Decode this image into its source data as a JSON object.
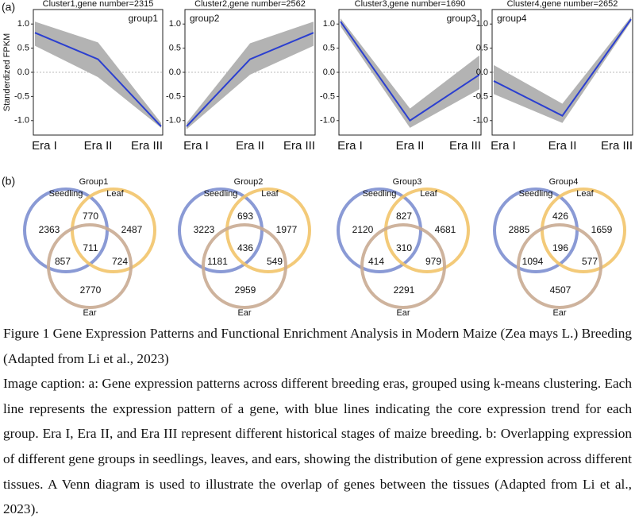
{
  "panel_labels": [
    "(a)",
    "(b)"
  ],
  "chart_data": [
    {
      "type": "line",
      "title": "Cluster1,gene number=2315",
      "annotation": "group1",
      "annotation_position": "right",
      "y_label": "Standerdized FPKM",
      "categories": [
        "Era I",
        "Era II",
        "Era III"
      ],
      "values": [
        0.82,
        0.27,
        -1.12
      ],
      "lower": [
        0.55,
        -0.1,
        -1.15
      ],
      "upper": [
        1.05,
        0.62,
        -1.05
      ],
      "color": "#2b3fd0",
      "band_color": "#b3b3b3",
      "ylim": [
        -1.3,
        1.3
      ],
      "yticks": [
        {
          "value": 1,
          "label": "1.0"
        },
        0.5,
        {
          "value": 0,
          "label": "0.0"
        },
        -0.5,
        {
          "value": -1,
          "label": "-1.0"
        }
      ],
      "zero_line": true
    },
    {
      "type": "line",
      "title": "Cluster2,gene number=2562",
      "annotation": "group2",
      "annotation_position": "left",
      "categories": [
        "Era I",
        "Era II",
        "Era III"
      ],
      "values": [
        -1.12,
        0.27,
        0.82
      ],
      "lower": [
        -1.18,
        -0.05,
        0.55
      ],
      "upper": [
        -1.05,
        0.6,
        1.05
      ],
      "color": "#2b3fd0",
      "band_color": "#b3b3b3",
      "ylim": [
        -1.3,
        1.3
      ],
      "yticks": [
        {
          "value": 1,
          "label": "1.0"
        },
        0.5,
        {
          "value": 0,
          "label": "0.0"
        },
        -0.5,
        {
          "value": -1,
          "label": "-1.0"
        }
      ],
      "zero_line": true
    },
    {
      "type": "line",
      "title": "Cluster3,gene number=1690",
      "annotation": "group3",
      "annotation_position": "right",
      "categories": [
        "Era I",
        "Era II",
        "Era III"
      ],
      "values": [
        1.05,
        -1.0,
        -0.05
      ],
      "lower": [
        0.95,
        -1.15,
        -0.35
      ],
      "upper": [
        1.12,
        -0.75,
        0.35
      ],
      "color": "#2b3fd0",
      "band_color": "#b3b3b3",
      "ylim": [
        -1.3,
        1.3
      ],
      "yticks": [
        {
          "value": 1,
          "label": "1.0"
        },
        0.5,
        {
          "value": 0,
          "label": "0.0"
        },
        -0.5,
        {
          "value": -1,
          "label": "-1.0"
        }
      ],
      "zero_line": true
    },
    {
      "type": "line",
      "title": "Cluster4,gene number=2652",
      "annotation": "group4",
      "annotation_position": "left",
      "categories": [
        "Era I",
        "Era II",
        "Era III"
      ],
      "values": [
        -0.18,
        -0.9,
        1.1
      ],
      "lower": [
        -0.45,
        -1.05,
        1.05
      ],
      "upper": [
        0.15,
        -0.65,
        1.15
      ],
      "color": "#2b3fd0",
      "band_color": "#b3b3b3",
      "ylim": [
        -1.3,
        1.3
      ],
      "yticks": [
        {
          "value": 1,
          "label": "1.0"
        },
        0.5,
        {
          "value": 0,
          "label": "0.0"
        },
        -0.5,
        {
          "value": -1,
          "label": "-1.0"
        }
      ],
      "zero_line": true
    }
  ],
  "venn": [
    {
      "title": "Group1",
      "sets": [
        "Seedling",
        "Leaf",
        "Ear"
      ],
      "regions": {
        "seedling_only": 2363,
        "seedling_leaf": 770,
        "leaf_only": 2487,
        "all": 711,
        "seedling_ear": 857,
        "leaf_ear": 724,
        "ear_only": 2770
      }
    },
    {
      "title": "Group2",
      "sets": [
        "Seedling",
        "Leaf",
        "Ear"
      ],
      "regions": {
        "seedling_only": 3223,
        "seedling_leaf": 693,
        "leaf_only": 1977,
        "all": 436,
        "seedling_ear": 1181,
        "leaf_ear": 549,
        "ear_only": 2959
      }
    },
    {
      "title": "Group3",
      "sets": [
        "Seedling",
        "Leaf",
        "Ear"
      ],
      "regions": {
        "seedling_only": 2120,
        "seedling_leaf": 827,
        "leaf_only": 4681,
        "all": 310,
        "seedling_ear": 414,
        "leaf_ear": 979,
        "ear_only": 2291
      }
    },
    {
      "title": "Group4",
      "sets": [
        "Seedling",
        "Leaf",
        "Ear"
      ],
      "regions": {
        "seedling_only": 2885,
        "seedling_leaf": 426,
        "leaf_only": 1659,
        "all": 196,
        "seedling_ear": 1094,
        "leaf_ear": 577,
        "ear_only": 4507
      }
    }
  ],
  "figure": {
    "title": "Figure 1 Gene Expression Patterns and Functional Enrichment Analysis in Modern Maize (Zea mays L.) Breeding (Adapted from Li et al., 2023)",
    "caption": "Image caption: a: Gene expression patterns across different breeding eras, grouped using k-means clustering. Each line represents the expression pattern of a gene, with blue lines indicating the core expression trend for each group. Era I, Era II, and Era III represent different historical stages of maize breeding. b: Overlapping expression of different gene groups in seedlings, leaves, and ears, showing the distribution of gene expression across different tissues. A Venn diagram is used to illustrate the overlap of genes between the tissues (Adapted from Li et al., 2023)."
  }
}
